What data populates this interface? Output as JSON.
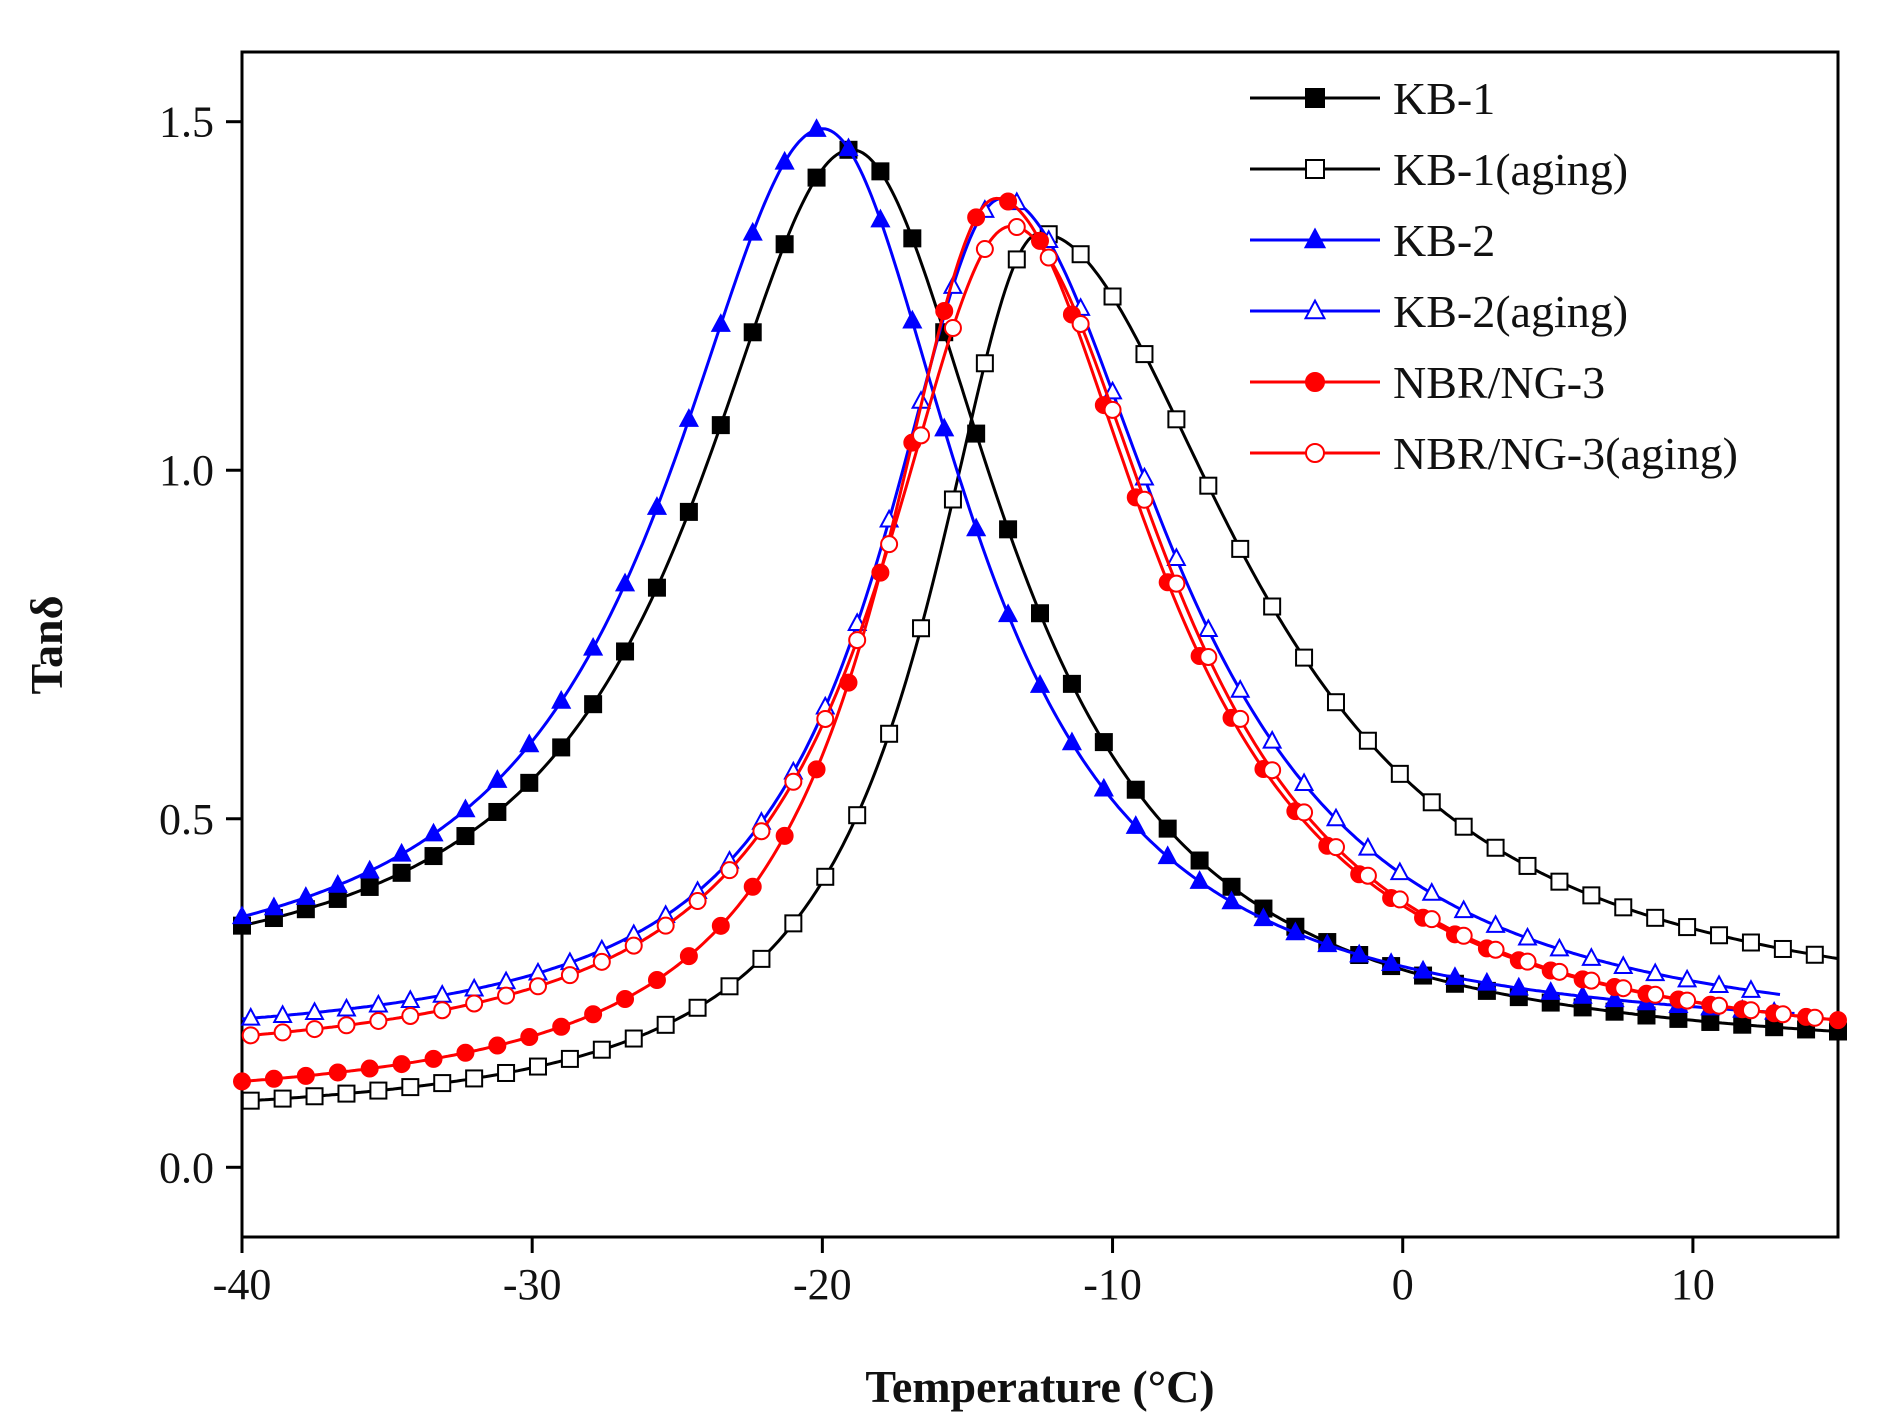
{
  "chart_data": {
    "type": "line",
    "title": "",
    "xlabel": "Temperature (°C)",
    "ylabel": "Tanδ",
    "xlim": [
      -40,
      15
    ],
    "ylim": [
      -0.1,
      1.6
    ],
    "xticks": [
      -40,
      -30,
      -20,
      -10,
      0,
      10
    ],
    "xtick_labels": [
      "-40",
      "-30",
      "-20",
      "-10",
      "0",
      "10"
    ],
    "yticks": [
      0.0,
      0.5,
      1.0,
      1.5
    ],
    "ytick_labels": [
      "0.0",
      "0.5",
      "1.0",
      "1.5"
    ],
    "grid": false,
    "legend_position": "top-right",
    "series": [
      {
        "name": "KB-1",
        "color": "#000000",
        "marker": "filled-square",
        "peak_x": -19.0,
        "peak_y": 1.46,
        "width_left": 6.5,
        "width_right": 6.4,
        "base_left": 0.24,
        "base_right": 0.15,
        "x_start": -40,
        "x_end": 15
      },
      {
        "name": "KB-1(aging)",
        "color": "#000000",
        "marker": "open-square",
        "peak_x": -12.5,
        "peak_y": 1.34,
        "width_left": 4.6,
        "width_right": 8.5,
        "base_left": 0.06,
        "base_right": 0.2,
        "x_start": -40,
        "x_end": 15
      },
      {
        "name": "KB-2",
        "color": "#0000ff",
        "marker": "filled-triangle",
        "peak_x": -20.0,
        "peak_y": 1.49,
        "width_left": 6.5,
        "width_right": 6.0,
        "base_left": 0.24,
        "base_right": 0.18,
        "x_start": -40,
        "x_end": 13.5
      },
      {
        "name": "KB-2(aging)",
        "color": "#0000ff",
        "marker": "open-triangle",
        "peak_x": -13.8,
        "peak_y": 1.39,
        "width_left": 5.0,
        "width_right": 7.0,
        "base_left": 0.17,
        "base_right": 0.17,
        "x_start": -40,
        "x_end": 13
      },
      {
        "name": "NBR/NG-3",
        "color": "#ff0000",
        "marker": "filled-circle",
        "peak_x": -14.0,
        "peak_y": 1.39,
        "width_left": 4.8,
        "width_right": 6.6,
        "base_left": 0.08,
        "base_right": 0.15,
        "x_start": -40,
        "x_end": 15
      },
      {
        "name": "NBR/NG-3(aging)",
        "color": "#ff0000",
        "marker": "open-circle",
        "peak_x": -13.5,
        "peak_y": 1.35,
        "width_left": 5.4,
        "width_right": 6.6,
        "base_left": 0.14,
        "base_right": 0.15,
        "x_start": -40,
        "x_end": 15
      }
    ]
  }
}
